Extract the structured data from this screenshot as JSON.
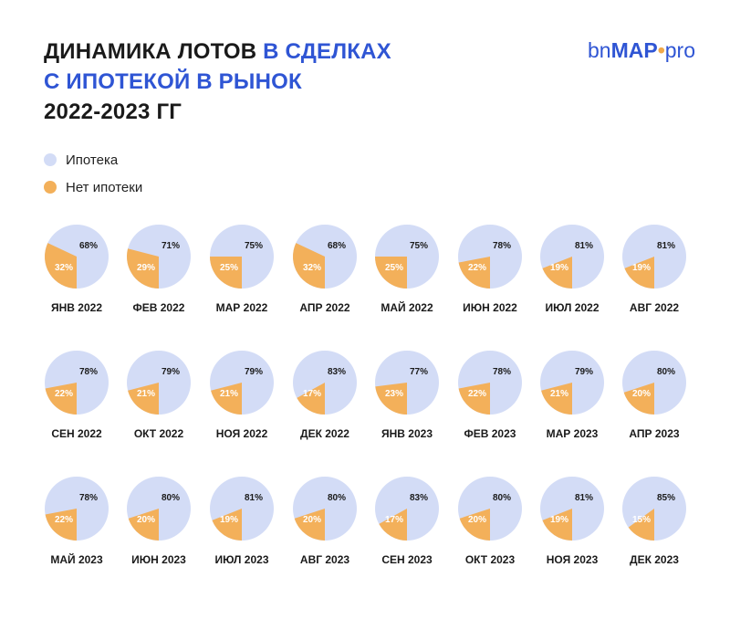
{
  "title": {
    "line1_black": "ДИНАМИКА  ЛОТОВ ",
    "line1_blue": "В СДЕЛКАХ",
    "line2_blue": "С ИПОТЕКОЙ В РЫНОК",
    "line3_black": "2022-2023 ГГ"
  },
  "logo": {
    "bn": "bn",
    "map": "MAP",
    "pin": "•",
    "pro": "pro"
  },
  "colors": {
    "mortgage": "#d3dcf6",
    "no_mortgage": "#f3b05a",
    "accent": "#2f55d4"
  },
  "legend": [
    {
      "label": "Ипотека",
      "color": "#d3dcf6"
    },
    {
      "label": "Нет ипотеки",
      "color": "#f3b05a"
    }
  ],
  "chart_data": {
    "type": "pie",
    "series_names": [
      "Ипотека",
      "Нет ипотеки"
    ],
    "months": [
      {
        "label": "ЯНВ 2022",
        "mortgage": 68,
        "no_mortgage": 32
      },
      {
        "label": "ФЕВ 2022",
        "mortgage": 71,
        "no_mortgage": 29
      },
      {
        "label": "МАР 2022",
        "mortgage": 75,
        "no_mortgage": 25
      },
      {
        "label": "АПР 2022",
        "mortgage": 68,
        "no_mortgage": 32
      },
      {
        "label": "МАЙ 2022",
        "mortgage": 75,
        "no_mortgage": 25
      },
      {
        "label": "ИЮН 2022",
        "mortgage": 78,
        "no_mortgage": 22
      },
      {
        "label": "ИЮЛ 2022",
        "mortgage": 81,
        "no_mortgage": 19
      },
      {
        "label": "АВГ 2022",
        "mortgage": 81,
        "no_mortgage": 19
      },
      {
        "label": "СЕН 2022",
        "mortgage": 78,
        "no_mortgage": 22
      },
      {
        "label": "ОКТ 2022",
        "mortgage": 79,
        "no_mortgage": 21
      },
      {
        "label": "НОЯ 2022",
        "mortgage": 79,
        "no_mortgage": 21
      },
      {
        "label": "ДЕК 2022",
        "mortgage": 83,
        "no_mortgage": 17
      },
      {
        "label": "ЯНВ 2023",
        "mortgage": 77,
        "no_mortgage": 23
      },
      {
        "label": "ФЕВ 2023",
        "mortgage": 78,
        "no_mortgage": 22
      },
      {
        "label": "МАР 2023",
        "mortgage": 79,
        "no_mortgage": 21
      },
      {
        "label": "АПР 2023",
        "mortgage": 80,
        "no_mortgage": 20
      },
      {
        "label": "МАЙ 2023",
        "mortgage": 78,
        "no_mortgage": 22
      },
      {
        "label": "ИЮН 2023",
        "mortgage": 80,
        "no_mortgage": 20
      },
      {
        "label": "ИЮЛ 2023",
        "mortgage": 81,
        "no_mortgage": 19
      },
      {
        "label": "АВГ 2023",
        "mortgage": 80,
        "no_mortgage": 20
      },
      {
        "label": "СЕН 2023",
        "mortgage": 83,
        "no_mortgage": 17
      },
      {
        "label": "ОКТ 2023",
        "mortgage": 80,
        "no_mortgage": 20
      },
      {
        "label": "НОЯ 2023",
        "mortgage": 81,
        "no_mortgage": 19
      },
      {
        "label": "ДЕК 2023",
        "mortgage": 85,
        "no_mortgage": 15
      }
    ]
  }
}
